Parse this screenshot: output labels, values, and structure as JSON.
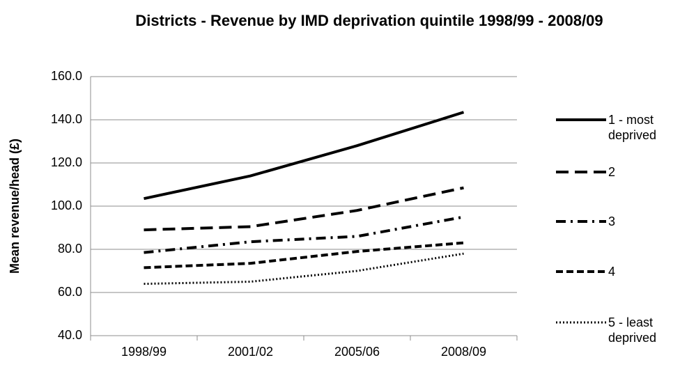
{
  "chart_data": {
    "type": "line",
    "title": "Districts - Revenue by IMD deprivation quintile 1998/99 - 2008/09",
    "y_label": "Mean revenue/head (£)",
    "categories": [
      "1998/99",
      "2001/02",
      "2005/06",
      "2008/09"
    ],
    "series": [
      {
        "name": "1 - most deprived",
        "color": "#000000",
        "line_style": "solid",
        "values": [
          103.5,
          114,
          128,
          143.5
        ]
      },
      {
        "name": "2",
        "color": "#000000",
        "line_style": "long-dash",
        "values": [
          89,
          90.5,
          98,
          108.5
        ]
      },
      {
        "name": "3",
        "color": "#000000",
        "line_style": "dash-dot",
        "values": [
          78.5,
          83.5,
          86,
          95
        ]
      },
      {
        "name": "4",
        "color": "#000000",
        "line_style": "dash",
        "values": [
          71.5,
          73.5,
          79,
          83
        ]
      },
      {
        "name": "5 - least deprived",
        "color": "#000000",
        "line_style": "dot",
        "values": [
          64,
          65,
          70,
          78
        ]
      }
    ],
    "ylim": [
      40,
      160
    ],
    "yticks": [
      {
        "value": 40,
        "label": "40.0"
      },
      {
        "value": 60,
        "label": "60.0"
      },
      {
        "value": 80,
        "label": "80.0"
      },
      {
        "value": 100,
        "label": "100.0"
      },
      {
        "value": 120,
        "label": "120.0"
      },
      {
        "value": 140,
        "label": "140.0"
      },
      {
        "value": 160,
        "label": "160.0"
      }
    ],
    "grid": true,
    "legend": "right"
  }
}
